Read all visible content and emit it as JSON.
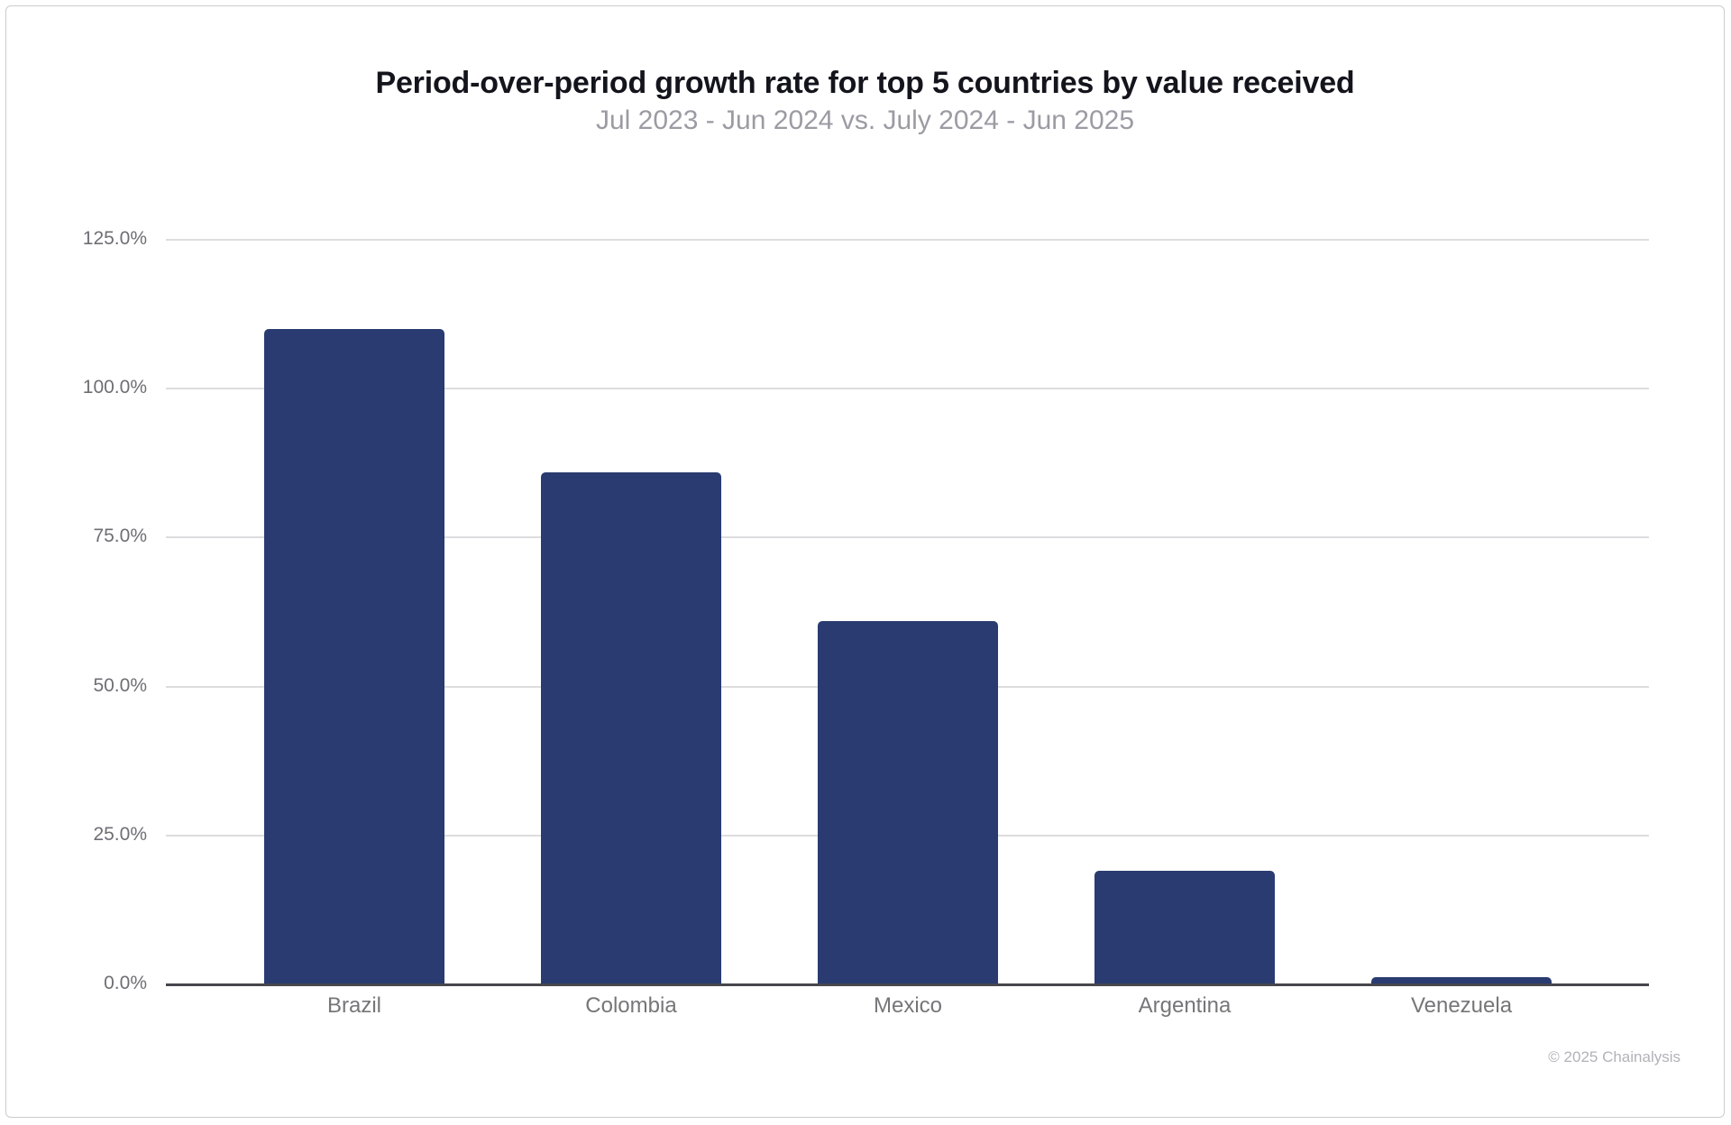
{
  "chart_data": {
    "type": "bar",
    "title": "Period-over-period growth rate for top 5 countries by value received",
    "subtitle": "Jul 2023 - Jun 2024 vs. July 2024 - Jun 2025",
    "categories": [
      "Brazil",
      "Colombia",
      "Mexico",
      "Argentina",
      "Venezuela"
    ],
    "values": [
      110,
      86,
      61,
      19,
      1.2
    ],
    "unit": "%",
    "ylabel": "",
    "xlabel": "",
    "ylim": [
      0,
      125
    ],
    "y_ticks": [
      {
        "value": 125,
        "label": "125.0%"
      },
      {
        "value": 100,
        "label": "100.0%"
      },
      {
        "value": 75,
        "label": "75.0%"
      },
      {
        "value": 50,
        "label": "50.0%"
      },
      {
        "value": 25,
        "label": "25.0%"
      },
      {
        "value": 0,
        "label": "0.0%"
      }
    ],
    "grid": "horizontal",
    "legend_position": "none",
    "bar_color": "#293B70"
  },
  "colors": {
    "bar": "#293B70",
    "gridline": "#dddddf",
    "axis_line": "#46464c",
    "title_text": "#14141c",
    "subtitle_text": "#9b9ba3",
    "tick_text": "#6e6e74",
    "credit_text": "#b2b2b9",
    "card_border": "#cccccc",
    "background": "#ffffff"
  },
  "footer": {
    "credit": "© 2025 Chainalysis"
  }
}
